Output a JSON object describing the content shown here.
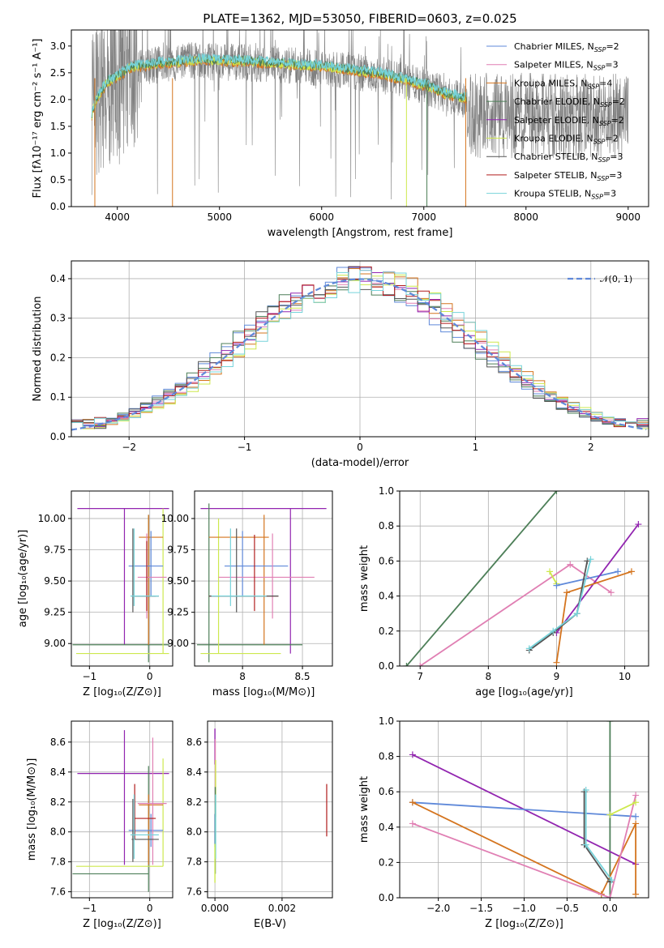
{
  "colors": {
    "chabrier_miles": "#5f89d9",
    "salpeter_miles": "#e07fb3",
    "kroupa_miles": "#d4741e",
    "chabrier_elodie": "#4d7f58",
    "salpeter_elodie": "#9225b0",
    "kroupa_elodie": "#cde84e",
    "chabrier_stelib": "#555555",
    "salpeter_stelib": "#b01c1c",
    "kroupa_stelib": "#76d3da",
    "gray": "#808080",
    "normal_line": "#5f89d9"
  },
  "chart_data": [
    {
      "id": "spectrum",
      "type": "line",
      "title": "PLATE=1362, MJD=53050, FIBERID=0603, z=0.025",
      "xlabel": "wavelength [Angstrom, rest frame]",
      "ylabel": "Flux [fλ10⁻¹⁷ erg cm⁻² s⁻¹ A⁻¹]",
      "xlim": [
        3550,
        9200
      ],
      "ylim": [
        0,
        3.3
      ],
      "xticks": [
        4000,
        5000,
        6000,
        7000,
        8000,
        9000
      ],
      "yticks": [
        0.0,
        0.5,
        1.0,
        1.5,
        2.0,
        2.5,
        3.0
      ],
      "grid": false,
      "legend_position": "upper-right",
      "legend": [
        {
          "text": "Chabrier MILES, N",
          "sub": "SSP",
          "suffix": "=2",
          "color_key": "chabrier_miles"
        },
        {
          "text": "Salpeter MILES, N",
          "sub": "SSP",
          "suffix": "=3",
          "color_key": "salpeter_miles"
        },
        {
          "text": "Kroupa MILES, N",
          "sub": "SSP",
          "suffix": "=4",
          "color_key": "kroupa_miles"
        },
        {
          "text": "Chabrier ELODIE, N",
          "sub": "SSP",
          "suffix": "=2",
          "color_key": "chabrier_elodie"
        },
        {
          "text": "Salpeter ELODIE, N",
          "sub": "SSP",
          "suffix": "=2",
          "color_key": "salpeter_elodie"
        },
        {
          "text": "Kroupa ELODIE, N",
          "sub": "SSP",
          "suffix": "=2",
          "color_key": "kroupa_elodie"
        },
        {
          "text": "Chabrier STELIB, N",
          "sub": "SSP",
          "suffix": "=3",
          "color_key": "chabrier_stelib"
        },
        {
          "text": "Salpeter STELIB, N",
          "sub": "SSP",
          "suffix": "=3",
          "color_key": "salpeter_stelib"
        },
        {
          "text": "Kroupa STELIB, N",
          "sub": "SSP",
          "suffix": "=3",
          "color_key": "kroupa_stelib"
        }
      ],
      "continuum": {
        "x": [
          3750,
          3800,
          3900,
          4000,
          4100,
          4200,
          4400,
          4600,
          4800,
          5000,
          5200,
          5400,
          5600,
          5800,
          6000,
          6200,
          6400,
          6600,
          6800,
          7000,
          7200,
          7400
        ],
        "y": [
          1.7,
          2.0,
          2.3,
          2.4,
          2.55,
          2.6,
          2.65,
          2.68,
          2.72,
          2.7,
          2.7,
          2.67,
          2.65,
          2.62,
          2.6,
          2.55,
          2.5,
          2.45,
          2.35,
          2.25,
          2.1,
          2.0
        ]
      },
      "data_range": [
        3750,
        9000
      ]
    },
    {
      "id": "residuals",
      "type": "histogram",
      "xlabel": "(data-model)/error",
      "ylabel": "Normed distribution",
      "xlim": [
        -2.5,
        2.5
      ],
      "ylim": [
        0,
        0.445
      ],
      "xticks": [
        -2,
        -1,
        0,
        1,
        2
      ],
      "yticks": [
        0.0,
        0.1,
        0.2,
        0.3,
        0.4
      ],
      "grid": true,
      "legend_position": "upper-right",
      "legend_label": "𝒩(0, 1)",
      "bin_width": 0.1
    },
    {
      "id": "age_vs_z",
      "type": "errorbar",
      "xlabel": "Z [log₁₀(Z/Z⊙)]",
      "ylabel": "age  [log₁₀(age/yr)]",
      "xlim": [
        -1.3,
        0.38
      ],
      "ylim": [
        8.82,
        10.22
      ],
      "xticks": [
        -1,
        0
      ],
      "yticks": [
        9.0,
        9.25,
        9.5,
        9.75,
        10.0
      ],
      "grid": true
    },
    {
      "id": "age_vs_mass",
      "type": "errorbar",
      "xlabel": "mass [log₁₀(M/M⊙)]",
      "xlim": [
        7.6,
        8.75
      ],
      "ylim": [
        8.82,
        10.22
      ],
      "xticks": [
        8.0,
        8.5
      ],
      "yticks": [
        9.0,
        9.25,
        9.5,
        9.75,
        10.0
      ],
      "grid": true
    },
    {
      "id": "weight_vs_age",
      "type": "line",
      "xlabel": "age  [log₁₀(age/yr)]",
      "ylabel": "mass weight",
      "xlim": [
        6.7,
        10.35
      ],
      "ylim": [
        0,
        1.0
      ],
      "xticks": [
        7,
        8,
        9,
        10
      ],
      "yticks": [
        0.0,
        0.2,
        0.4,
        0.6,
        0.8,
        1.0
      ],
      "grid": true,
      "series": [
        {
          "color_key": "chabrier_elodie",
          "x": [
            6.8,
            9.0
          ],
          "y": [
            0.0,
            1.0
          ]
        },
        {
          "color_key": "salpeter_miles",
          "x": [
            7.0,
            9.2,
            9.8
          ],
          "y": [
            0.0,
            0.58,
            0.42
          ]
        },
        {
          "color_key": "kroupa_elodie",
          "x": [
            8.9,
            9.0
          ],
          "y": [
            0.54,
            0.47
          ]
        },
        {
          "color_key": "chabrier_miles",
          "x": [
            9.0,
            9.9
          ],
          "y": [
            0.46,
            0.54
          ]
        },
        {
          "color_key": "salpeter_elodie",
          "x": [
            9.0,
            10.2
          ],
          "y": [
            0.19,
            0.81
          ]
        },
        {
          "color_key": "kroupa_miles",
          "x": [
            9.0,
            9.15,
            10.1
          ],
          "y": [
            0.02,
            0.42,
            0.54
          ]
        },
        {
          "color_key": "chabrier_stelib",
          "x": [
            8.6,
            8.95,
            9.3,
            9.45
          ],
          "y": [
            0.09,
            0.19,
            0.3,
            0.6
          ]
        },
        {
          "color_key": "kroupa_stelib",
          "x": [
            8.6,
            8.95,
            9.3,
            9.5
          ],
          "y": [
            0.1,
            0.2,
            0.3,
            0.61
          ]
        }
      ]
    },
    {
      "id": "mass_vs_z",
      "type": "errorbar",
      "xlabel": "Z [log₁₀(Z/Z⊙)]",
      "ylabel": "mass [log₁₀(M/M⊙)]",
      "xlim": [
        -1.3,
        0.38
      ],
      "ylim": [
        7.56,
        8.74
      ],
      "xticks": [
        -1,
        0
      ],
      "yticks": [
        7.6,
        7.8,
        8.0,
        8.2,
        8.4,
        8.6
      ],
      "grid": true
    },
    {
      "id": "mass_vs_ebv",
      "type": "errorbar",
      "xlabel": "E(B-V)",
      "xlim": [
        -0.00022,
        0.0035
      ],
      "ylim": [
        7.56,
        8.74
      ],
      "xticks": [
        0.0,
        0.002
      ],
      "xticklabels": [
        "0.000",
        "0.002"
      ],
      "yticks": [
        7.6,
        7.8,
        8.0,
        8.2,
        8.4,
        8.6
      ],
      "grid": true
    },
    {
      "id": "weight_vs_z",
      "type": "line",
      "xlabel": "Z [log₁₀(Z/Z⊙)]",
      "ylabel": "mass weight",
      "xlim": [
        -2.45,
        0.45
      ],
      "ylim": [
        0,
        1.0
      ],
      "xticks": [
        -2.0,
        -1.5,
        -1.0,
        -0.5,
        0.0
      ],
      "yticks": [
        0.0,
        0.2,
        0.4,
        0.6,
        0.8,
        1.0
      ],
      "grid": true,
      "series": [
        {
          "color_key": "chabrier_elodie",
          "x": [
            0.0,
            0.0
          ],
          "y": [
            0.0,
            1.0
          ]
        },
        {
          "color_key": "salpeter_elodie",
          "x": [
            -2.3,
            0.3
          ],
          "y": [
            0.81,
            0.19
          ]
        },
        {
          "color_key": "chabrier_miles",
          "x": [
            -2.3,
            0.3
          ],
          "y": [
            0.54,
            0.46
          ]
        },
        {
          "color_key": "kroupa_miles",
          "x": [
            -2.3,
            -0.1,
            0.3,
            0.3
          ],
          "y": [
            0.54,
            0.02,
            0.42,
            0.02
          ]
        },
        {
          "color_key": "salpeter_miles",
          "x": [
            -2.3,
            0.0,
            0.3
          ],
          "y": [
            0.42,
            0.0,
            0.58
          ]
        },
        {
          "color_key": "kroupa_elodie",
          "x": [
            0.0,
            0.3
          ],
          "y": [
            0.47,
            0.54
          ]
        },
        {
          "color_key": "chabrier_stelib",
          "x": [
            -0.3,
            -0.3,
            0.0
          ],
          "y": [
            0.6,
            0.3,
            0.09
          ]
        },
        {
          "color_key": "kroupa_stelib",
          "x": [
            -0.28,
            -0.28,
            0.02
          ],
          "y": [
            0.61,
            0.3,
            0.1
          ]
        }
      ]
    }
  ]
}
